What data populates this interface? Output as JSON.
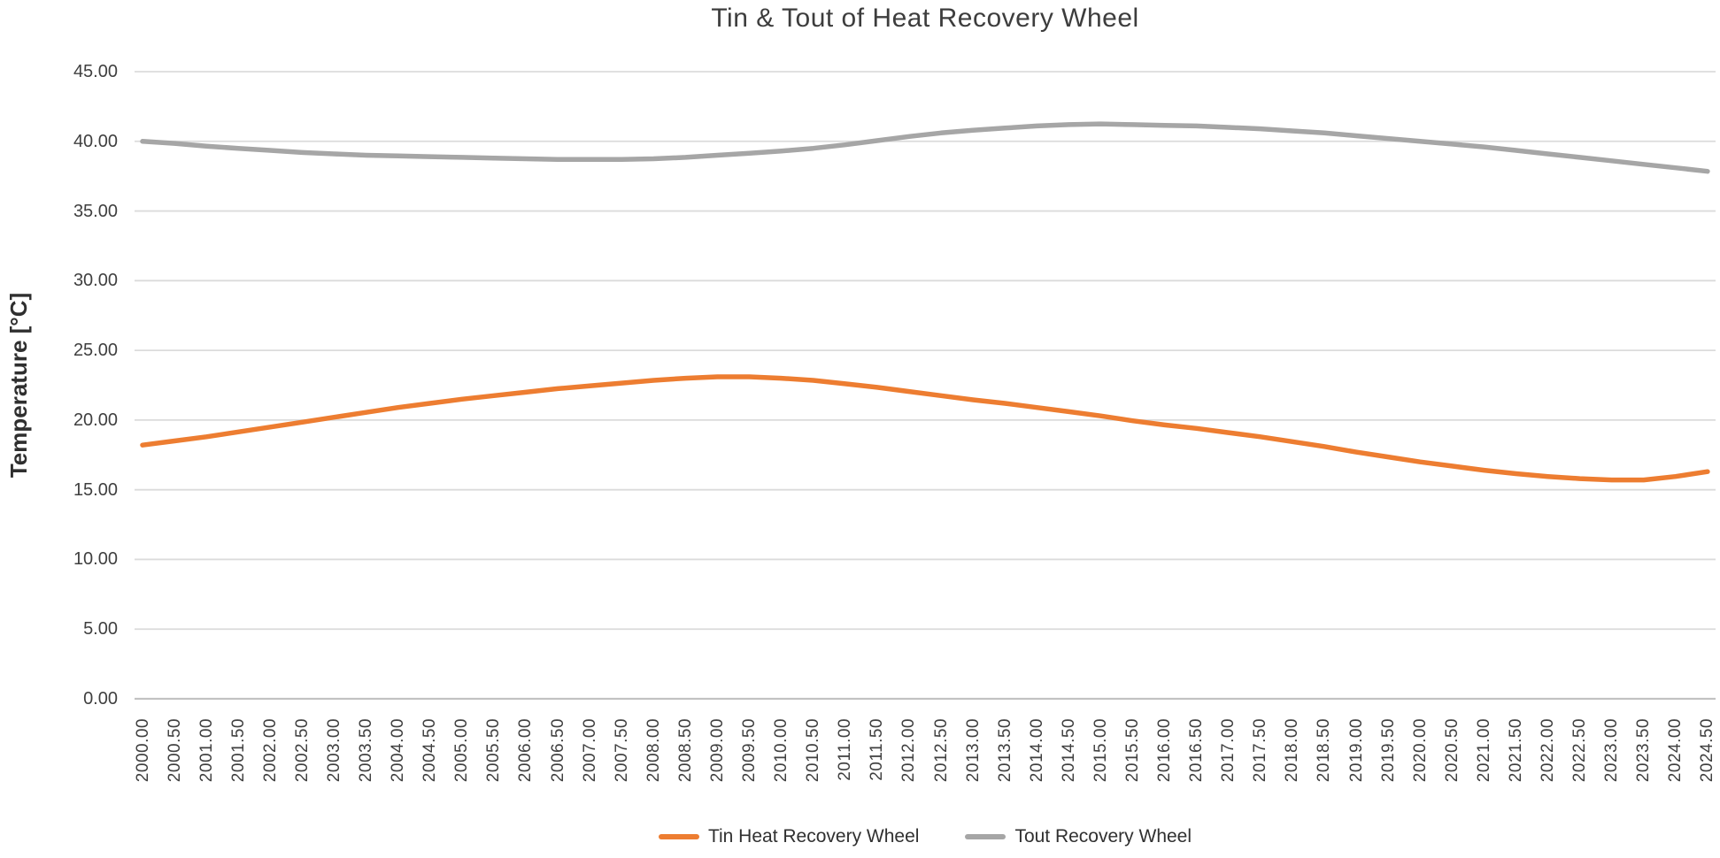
{
  "chart_data": {
    "type": "line",
    "title": "Tin & Tout of Heat Recovery Wheel",
    "xlabel": "",
    "ylabel": "Temperature [°C]",
    "ylim": [
      0,
      45
    ],
    "grid": true,
    "legend_position": "bottom",
    "yticks": [
      "45.00",
      "40.00",
      "35.00",
      "30.00",
      "25.00",
      "20.00",
      "15.00",
      "10.00",
      "5.00",
      "0.00"
    ],
    "categories": [
      "2000.00",
      "2000.50",
      "2001.00",
      "2001.50",
      "2002.00",
      "2002.50",
      "2003.00",
      "2003.50",
      "2004.00",
      "2004.50",
      "2005.00",
      "2005.50",
      "2006.00",
      "2006.50",
      "2007.00",
      "2007.50",
      "2008.00",
      "2008.50",
      "2009.00",
      "2009.50",
      "2010.00",
      "2010.50",
      "2011.00",
      "2011.50",
      "2012.00",
      "2012.50",
      "2013.00",
      "2013.50",
      "2014.00",
      "2014.50",
      "2015.00",
      "2015.50",
      "2016.00",
      "2016.50",
      "2017.00",
      "2017.50",
      "2018.00",
      "2018.50",
      "2019.00",
      "2019.50",
      "2020.00",
      "2020.50",
      "2021.00",
      "2021.50",
      "2022.00",
      "2022.50",
      "2023.00",
      "2023.50",
      "2024.00",
      "2024.50"
    ],
    "series": [
      {
        "name": "Tin Heat Recovery Wheel",
        "color": "#ED7D31",
        "values": [
          18.2,
          18.5,
          18.8,
          19.15,
          19.5,
          19.85,
          20.2,
          20.55,
          20.9,
          21.2,
          21.5,
          21.75,
          22.0,
          22.25,
          22.45,
          22.65,
          22.85,
          23.0,
          23.1,
          23.1,
          23.0,
          22.85,
          22.6,
          22.35,
          22.05,
          21.75,
          21.45,
          21.2,
          20.9,
          20.6,
          20.3,
          19.95,
          19.65,
          19.4,
          19.1,
          18.8,
          18.45,
          18.1,
          17.7,
          17.35,
          17.0,
          16.7,
          16.4,
          16.15,
          15.95,
          15.8,
          15.7,
          15.7,
          15.95,
          16.3
        ]
      },
      {
        "name": "Tout Recovery Wheel",
        "color": "#A6A6A6",
        "values": [
          40.0,
          39.85,
          39.65,
          39.5,
          39.35,
          39.2,
          39.1,
          39.0,
          38.95,
          38.9,
          38.85,
          38.8,
          38.75,
          38.7,
          38.7,
          38.7,
          38.75,
          38.85,
          39.0,
          39.15,
          39.3,
          39.5,
          39.75,
          40.05,
          40.35,
          40.6,
          40.8,
          40.95,
          41.1,
          41.2,
          41.25,
          41.2,
          41.15,
          41.1,
          41.0,
          40.9,
          40.75,
          40.6,
          40.4,
          40.2,
          40.0,
          39.8,
          39.6,
          39.35,
          39.1,
          38.85,
          38.6,
          38.35,
          38.1,
          37.85
        ]
      }
    ],
    "colors": {
      "gridline": "#DBDBDB",
      "axis_line": "#C2C2C2",
      "text": "#3f3f3f"
    }
  }
}
